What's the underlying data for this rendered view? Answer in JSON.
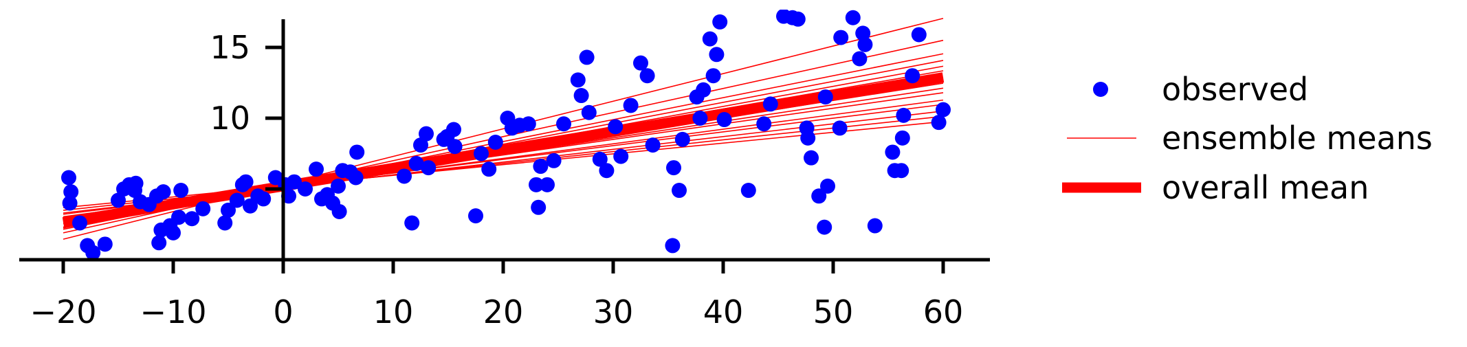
{
  "chart_data": {
    "type": "scatter",
    "title": "",
    "xlabel": "",
    "ylabel": "",
    "xlim": [
      -24,
      64
    ],
    "ylim": [
      0,
      17
    ],
    "xticks": [
      -20,
      -10,
      0,
      10,
      20,
      30,
      40,
      50,
      60
    ],
    "xtick_labels": [
      "−20",
      "−10",
      "0",
      "10",
      "20",
      "30",
      "40",
      "50",
      "60"
    ],
    "yticks": [
      5,
      10,
      15
    ],
    "ytick_labels": [
      "",
      "10",
      "15"
    ],
    "legend": {
      "placement": "right",
      "entries": [
        {
          "key": "observed",
          "label": "observed"
        },
        {
          "key": "ensemble",
          "label": "ensemble means"
        },
        {
          "key": "overall",
          "label": "overall mean"
        }
      ]
    },
    "colors": {
      "observed": "#0000ff",
      "lines": "#ff0000",
      "axis": "#000000"
    },
    "observed": {
      "name": "observed",
      "points": [
        [
          -19.5,
          5.8
        ],
        [
          -19.3,
          4.8
        ],
        [
          -19.4,
          4.0
        ],
        [
          -18.5,
          2.6
        ],
        [
          -17.8,
          1.0
        ],
        [
          -17.3,
          0.5
        ],
        [
          -16.2,
          1.1
        ],
        [
          -15,
          4.2
        ],
        [
          -14.5,
          5.0
        ],
        [
          -14,
          5.3
        ],
        [
          -13.5,
          4.9
        ],
        [
          -13.4,
          5.4
        ],
        [
          -13,
          4.1
        ],
        [
          -12.2,
          3.9
        ],
        [
          -11.5,
          4.5
        ],
        [
          -11.3,
          1.2
        ],
        [
          -11.1,
          2.1
        ],
        [
          -10.9,
          4.8
        ],
        [
          -10.3,
          2.4
        ],
        [
          -10,
          1.9
        ],
        [
          -9.5,
          3.0
        ],
        [
          -9.3,
          4.9
        ],
        [
          -8.3,
          2.9
        ],
        [
          -7.3,
          3.6
        ],
        [
          -5.3,
          2.6
        ],
        [
          -5,
          3.5
        ],
        [
          -4.2,
          4.2
        ],
        [
          -3.7,
          5.3
        ],
        [
          -3.4,
          5.5
        ],
        [
          -3,
          3.8
        ],
        [
          -2.3,
          4.5
        ],
        [
          -1.8,
          4.3
        ],
        [
          -0.7,
          5.8
        ],
        [
          0.2,
          5.3
        ],
        [
          0.5,
          4.5
        ],
        [
          1,
          5.5
        ],
        [
          2,
          5.0
        ],
        [
          3,
          6.4
        ],
        [
          3.5,
          4.3
        ],
        [
          4,
          4.6
        ],
        [
          4.5,
          4.0
        ],
        [
          5,
          5.2
        ],
        [
          5.1,
          3.4
        ],
        [
          5.4,
          6.3
        ],
        [
          6.1,
          6.2
        ],
        [
          6.6,
          5.8
        ],
        [
          6.7,
          7.6
        ],
        [
          11,
          5.9
        ],
        [
          11.7,
          2.6
        ],
        [
          12.1,
          6.8
        ],
        [
          12.5,
          8.1
        ],
        [
          13,
          8.9
        ],
        [
          13.2,
          6.5
        ],
        [
          14.6,
          8.5
        ],
        [
          14.9,
          8.7
        ],
        [
          15.5,
          9.2
        ],
        [
          15.6,
          8.0
        ],
        [
          17.5,
          3.1
        ],
        [
          18,
          7.5
        ],
        [
          18.7,
          6.4
        ],
        [
          19.3,
          8.3
        ],
        [
          20.4,
          10.0
        ],
        [
          20.8,
          9.3
        ],
        [
          21.5,
          9.5
        ],
        [
          22.3,
          9.6
        ],
        [
          23,
          5.3
        ],
        [
          23.2,
          3.7
        ],
        [
          23.4,
          6.6
        ],
        [
          24,
          5.3
        ],
        [
          24.6,
          7.0
        ],
        [
          25.5,
          9.6
        ],
        [
          26.8,
          12.7
        ],
        [
          27.1,
          11.6
        ],
        [
          27.6,
          14.3
        ],
        [
          27.8,
          10.4
        ],
        [
          28.8,
          7.1
        ],
        [
          29.4,
          6.3
        ],
        [
          30.2,
          9.4
        ],
        [
          30.7,
          7.3
        ],
        [
          31.6,
          10.9
        ],
        [
          32.5,
          13.9
        ],
        [
          33.1,
          13.0
        ],
        [
          33.6,
          8.1
        ],
        [
          35.4,
          1.0
        ],
        [
          35.5,
          6.5
        ],
        [
          36,
          4.9
        ],
        [
          36.3,
          8.5
        ],
        [
          37.6,
          11.5
        ],
        [
          37.9,
          10.0
        ],
        [
          38.2,
          12.0
        ],
        [
          38.8,
          15.6
        ],
        [
          39.1,
          13.0
        ],
        [
          39.4,
          14.5
        ],
        [
          39.7,
          16.8
        ],
        [
          40.1,
          9.9
        ],
        [
          42.3,
          4.9
        ],
        [
          43.7,
          9.6
        ],
        [
          44.3,
          11.0
        ],
        [
          45.5,
          17.2
        ],
        [
          46.3,
          17.1
        ],
        [
          46.8,
          17.0
        ],
        [
          47.6,
          9.3
        ],
        [
          47.7,
          8.6
        ],
        [
          48,
          7.2
        ],
        [
          48.7,
          4.5
        ],
        [
          49.2,
          2.3
        ],
        [
          49.3,
          11.5
        ],
        [
          49.5,
          5.2
        ],
        [
          50.6,
          9.3
        ],
        [
          50.7,
          15.7
        ],
        [
          51.8,
          17.1
        ],
        [
          52.4,
          14.2
        ],
        [
          52.7,
          16.0
        ],
        [
          52.9,
          15.2
        ],
        [
          53.8,
          2.4
        ],
        [
          55.4,
          7.6
        ],
        [
          55.6,
          6.3
        ],
        [
          56.2,
          6.3
        ],
        [
          56.3,
          8.6
        ],
        [
          56.4,
          10.2
        ],
        [
          57.2,
          13.0
        ],
        [
          57.8,
          15.9
        ],
        [
          59.6,
          9.7
        ],
        [
          60,
          10.6
        ]
      ]
    },
    "ensemble_means": {
      "name": "ensemble means",
      "lines": [
        {
          "intercept": 5.35,
          "slope": 0.195
        },
        {
          "intercept": 5.3,
          "slope": 0.17
        },
        {
          "intercept": 5.25,
          "slope": 0.155
        },
        {
          "intercept": 5.2,
          "slope": 0.148
        },
        {
          "intercept": 5.15,
          "slope": 0.142
        },
        {
          "intercept": 5.25,
          "slope": 0.135
        },
        {
          "intercept": 5.2,
          "slope": 0.128
        },
        {
          "intercept": 5.15,
          "slope": 0.122
        },
        {
          "intercept": 5.1,
          "slope": 0.117
        },
        {
          "intercept": 5.2,
          "slope": 0.11
        },
        {
          "intercept": 5.1,
          "slope": 0.103
        },
        {
          "intercept": 5.15,
          "slope": 0.097
        },
        {
          "intercept": 5.1,
          "slope": 0.09
        },
        {
          "intercept": 5.15,
          "slope": 0.083
        },
        {
          "intercept": 5.2,
          "slope": 0.076
        }
      ],
      "x_range": [
        -20,
        60
      ]
    },
    "overall_mean": {
      "name": "overall mean",
      "intercept": 5.2,
      "slope": 0.128,
      "x_range": [
        -20,
        60
      ]
    }
  }
}
